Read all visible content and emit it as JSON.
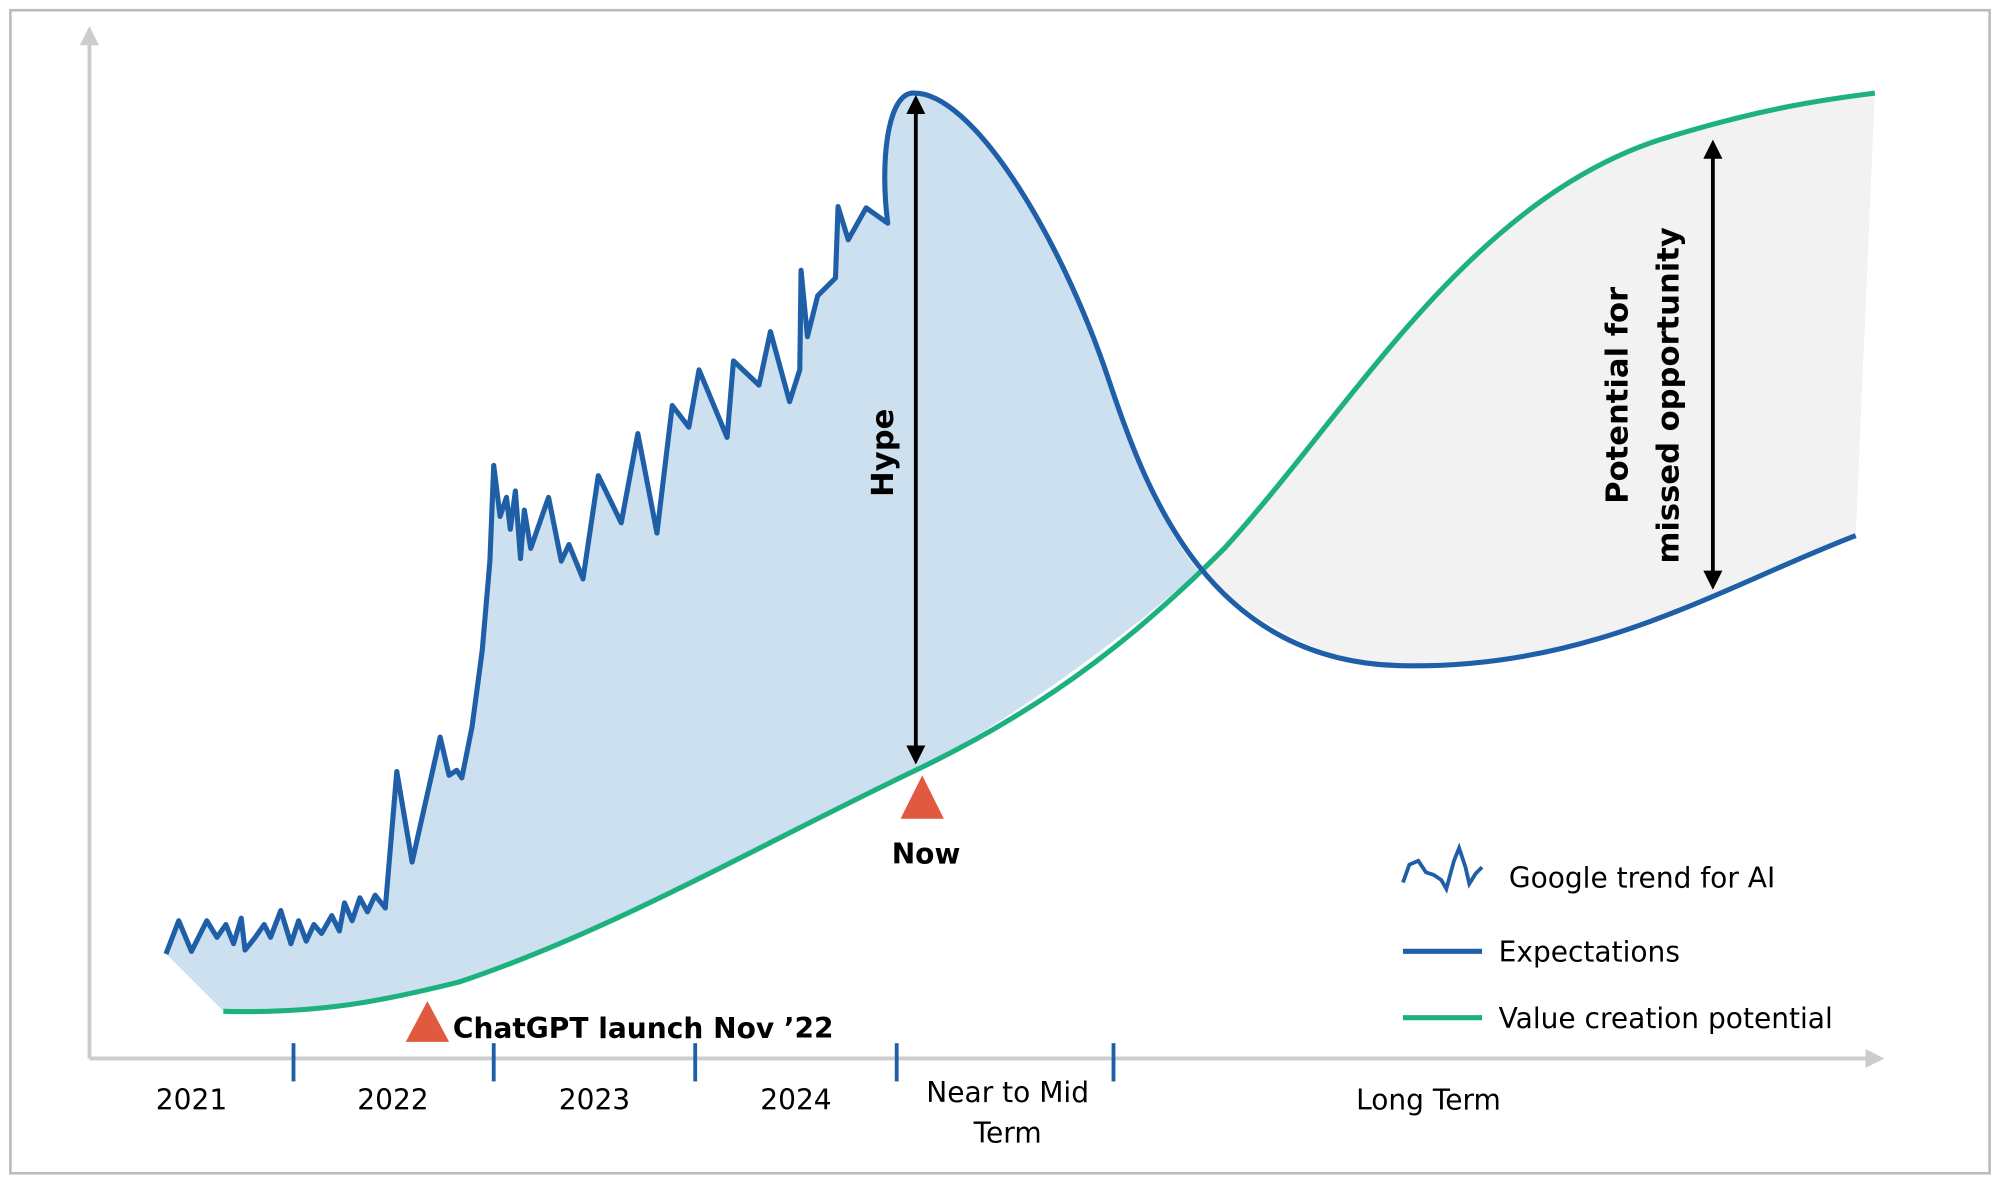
{
  "annotations": {
    "hype": "Hype",
    "missed": [
      "Potential for",
      "missed opportunity"
    ],
    "now": "Now",
    "launch": "ChatGPT launch Nov ’22"
  },
  "x_axis": {
    "labels": [
      "2021",
      "2022",
      "2023",
      "2024",
      [
        "Near to Mid",
        "Term"
      ],
      "Long Term"
    ]
  },
  "legend": [
    "Google trend for AI",
    "Expectations",
    "Value creation potential"
  ]
}
